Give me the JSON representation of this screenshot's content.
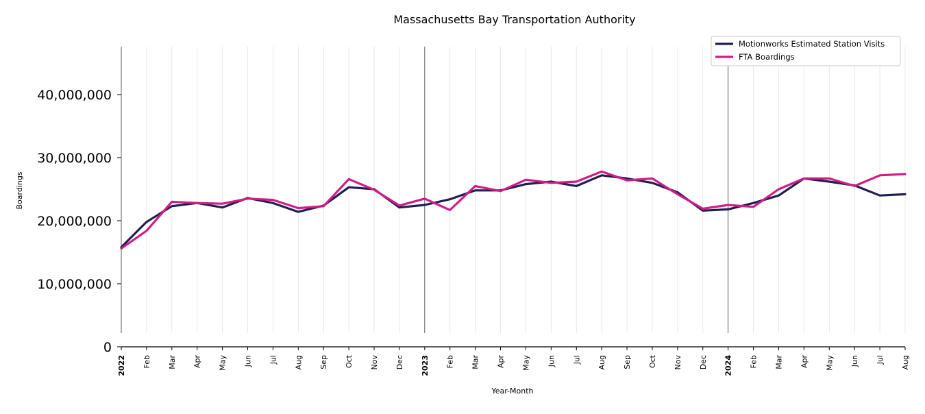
{
  "chart_data": {
    "type": "line",
    "title": "Massachusetts Bay Transportation Authority",
    "xlabel": "Year-Month",
    "ylabel": "Boardings",
    "ylim": [
      0,
      47000000
    ],
    "y_ticks": [
      {
        "value": 0,
        "label": "0"
      },
      {
        "value": 10000000,
        "label": "10,000,000"
      },
      {
        "value": 20000000,
        "label": "20,000,000"
      },
      {
        "value": 30000000,
        "label": "30,000,000"
      },
      {
        "value": 40000000,
        "label": "40,000,000"
      }
    ],
    "x_labels": [
      "2022",
      "Feb",
      "Mar",
      "Apr",
      "May",
      "Jun",
      "Jul",
      "Aug",
      "Sep",
      "Oct",
      "Nov",
      "Dec",
      "2023",
      "Feb",
      "Mar",
      "Apr",
      "May",
      "Jun",
      "Jul",
      "Aug",
      "Sep",
      "Oct",
      "Nov",
      "Dec",
      "2024",
      "Feb",
      "Mar",
      "Apr",
      "May",
      "Jun",
      "Jul",
      "Aug"
    ],
    "year_boundaries": [
      "2023",
      "2024"
    ],
    "legend_position": "top-right",
    "grid": "vertical",
    "series": [
      {
        "name": "Motionworks Estimated Station Visits",
        "color": "#1f1f4f",
        "values": [
          15800000,
          19800000,
          22300000,
          22800000,
          22100000,
          23600000,
          22800000,
          21400000,
          22400000,
          25300000,
          25000000,
          22100000,
          22500000,
          23400000,
          24800000,
          24800000,
          25800000,
          26200000,
          25500000,
          27200000,
          26700000,
          26000000,
          24500000,
          21600000,
          21800000,
          22800000,
          24000000,
          26700000,
          26200000,
          25600000,
          24000000,
          24200000
        ]
      },
      {
        "name": "FTA Boardings",
        "color": "#d11c88",
        "values": [
          15600000,
          18400000,
          23000000,
          22800000,
          22700000,
          23500000,
          23300000,
          22000000,
          22300000,
          26600000,
          24900000,
          22400000,
          23500000,
          21700000,
          25500000,
          24700000,
          26500000,
          26000000,
          26200000,
          27800000,
          26400000,
          26700000,
          24200000,
          21900000,
          22500000,
          22200000,
          25000000,
          26700000,
          26700000,
          25500000,
          27200000,
          27400000
        ]
      }
    ]
  }
}
